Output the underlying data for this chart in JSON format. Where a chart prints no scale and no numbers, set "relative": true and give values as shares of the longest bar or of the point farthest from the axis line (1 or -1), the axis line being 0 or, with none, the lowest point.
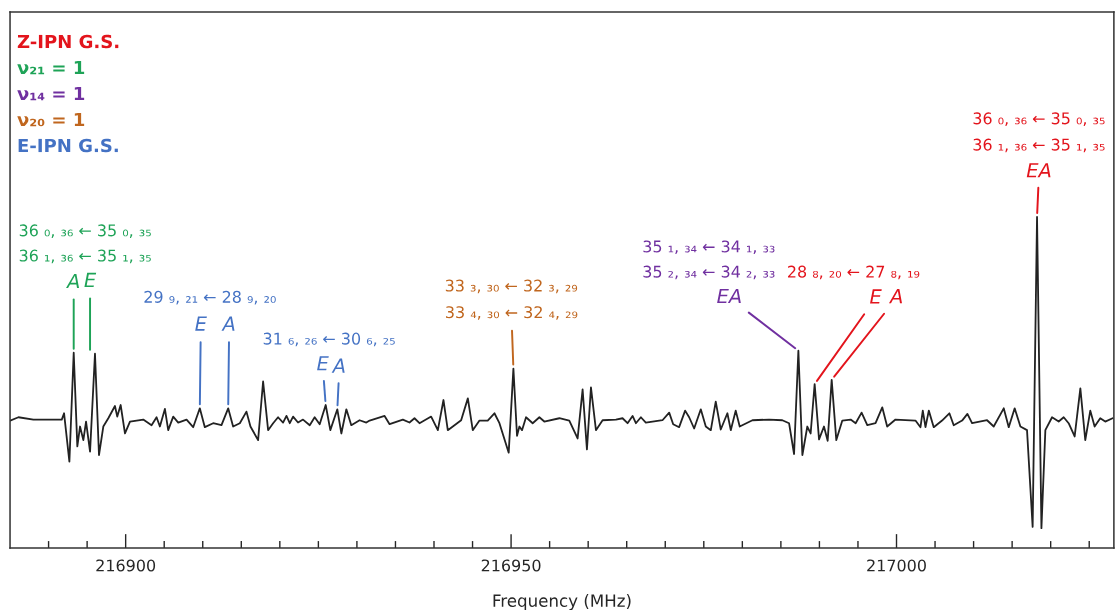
{
  "chart_data": {
    "type": "line",
    "relative": true,
    "xlabel": "Frequency (MHz)",
    "xlim": [
      216885,
      217028.2
    ],
    "xticks": [
      {
        "value": 216890,
        "label": null
      },
      {
        "value": 216895,
        "label": null
      },
      216900,
      {
        "value": 216905,
        "label": null
      },
      {
        "value": 216910,
        "label": null
      },
      {
        "value": 216915,
        "label": null
      },
      {
        "value": 216920,
        "label": null
      },
      {
        "value": 216925,
        "label": null
      },
      {
        "value": 216930,
        "label": null
      },
      {
        "value": 216935,
        "label": null
      },
      {
        "value": 216940,
        "label": null
      },
      {
        "value": 216945,
        "label": null
      },
      216950,
      {
        "value": 216955,
        "label": null
      },
      {
        "value": 216960,
        "label": null
      },
      {
        "value": 216965,
        "label": null
      },
      {
        "value": 216970,
        "label": null
      },
      {
        "value": 216975,
        "label": null
      },
      {
        "value": 216980,
        "label": null
      },
      {
        "value": 216985,
        "label": null
      },
      {
        "value": 216990,
        "label": null
      },
      {
        "value": 216995,
        "label": null
      },
      217000,
      {
        "value": 217005,
        "label": null
      },
      {
        "value": 217010,
        "label": null
      },
      {
        "value": 217015,
        "label": null
      },
      {
        "value": 217020,
        "label": null
      },
      {
        "value": 217025,
        "label": null
      }
    ],
    "tick_labels": "x",
    "marker": "none",
    "line_style": "solid",
    "x": [
      216885.01,
      216886.09,
      216888.03,
      216891.71,
      216892.01,
      216892.7,
      216893.26,
      216893.73,
      216894.08,
      216894.51,
      216894.86,
      216895.38,
      216896.02,
      216896.54,
      216897.1,
      216897.75,
      216898.61,
      216898.91,
      216899.35,
      216899.91,
      216900.56,
      216902.28,
      216903.36,
      216904.01,
      216904.44,
      216905.09,
      216905.52,
      216906.17,
      216906.82,
      216907.9,
      216908.76,
      216909.62,
      216910.27,
      216911.35,
      216912.43,
      216913.3,
      216913.94,
      216914.81,
      216915.67,
      216916.19,
      216917.18,
      216917.83,
      216918.48,
      216919.13,
      216919.77,
      216920.42,
      216920.86,
      216921.29,
      216921.72,
      216922.36,
      216923.01,
      216923.88,
      216924.52,
      216925.17,
      216925.95,
      216926.55,
      216927.46,
      216927.98,
      216928.63,
      216929.27,
      216930.35,
      216931.22,
      216931.65,
      216933.59,
      216934.24,
      216935.96,
      216936.82,
      216937.47,
      216938.12,
      216939.63,
      216940.5,
      216941.23,
      216941.79,
      216942.66,
      216943.52,
      216944.39,
      216945.03,
      216945.9,
      216946.97,
      216947.84,
      216948.49,
      216949.69,
      216950.3,
      216950.77,
      216951.08,
      216951.42,
      216951.94,
      216952.8,
      216953.67,
      216954.31,
      216956.26,
      216957.55,
      216958.63,
      216959.28,
      216959.84,
      216960.36,
      216961.01,
      216961.87,
      216963.6,
      216964.46,
      216965.11,
      216965.76,
      216966.19,
      216966.84,
      216967.48,
      216969.64,
      216970.51,
      216971.03,
      216971.8,
      216972.58,
      216973.1,
      216973.75,
      216974.61,
      216975.26,
      216975.91,
      216976.55,
      216977.2,
      216978.06,
      216978.5,
      216979.14,
      216979.66,
      216981.31,
      216983.47,
      216985.19,
      216986.06,
      216986.71,
      216987.27,
      216987.79,
      216988.43,
      216988.86,
      216989.38,
      216989.95,
      216990.59,
      216991.07,
      216991.59,
      216992.19,
      216992.97,
      216994.05,
      216994.7,
      216995.47,
      216996.21,
      216997.28,
      216998.15,
      216998.79,
      216999.87,
      217002.46,
      217003.11,
      217003.41,
      217003.76,
      217004.19,
      217004.83,
      217005.91,
      217006.86,
      217007.42,
      217008.51,
      217009.2,
      217009.8,
      217011.75,
      217012.61,
      217013.91,
      217014.56,
      217015.33,
      217016.07,
      217016.93,
      217017.66,
      217018.23,
      217018.8,
      217019.31,
      217020.18,
      217021.04,
      217021.69,
      217022.33,
      217023.11,
      217023.85,
      217024.49,
      217025.14,
      217025.7,
      217026.43,
      217027.08,
      217028.03
    ],
    "series": [
      {
        "color": "#222222",
        "values": [
          0.385,
          0.395,
          0.388,
          0.388,
          0.407,
          0.261,
          0.59,
          0.307,
          0.367,
          0.326,
          0.382,
          0.291,
          0.587,
          0.281,
          0.367,
          0.392,
          0.429,
          0.397,
          0.432,
          0.346,
          0.382,
          0.388,
          0.371,
          0.395,
          0.367,
          0.42,
          0.356,
          0.397,
          0.379,
          0.388,
          0.365,
          0.422,
          0.365,
          0.377,
          0.371,
          0.422,
          0.367,
          0.377,
          0.412,
          0.367,
          0.326,
          0.503,
          0.356,
          0.377,
          0.395,
          0.379,
          0.399,
          0.377,
          0.397,
          0.379,
          0.388,
          0.371,
          0.395,
          0.374,
          0.432,
          0.356,
          0.419,
          0.346,
          0.419,
          0.371,
          0.386,
          0.379,
          0.385,
          0.399,
          0.374,
          0.388,
          0.379,
          0.392,
          0.377,
          0.397,
          0.356,
          0.447,
          0.356,
          0.371,
          0.386,
          0.452,
          0.356,
          0.385,
          0.385,
          0.407,
          0.377,
          0.288,
          0.542,
          0.339,
          0.367,
          0.356,
          0.395,
          0.377,
          0.395,
          0.382,
          0.392,
          0.385,
          0.331,
          0.479,
          0.298,
          0.485,
          0.356,
          0.386,
          0.388,
          0.392,
          0.377,
          0.399,
          0.377,
          0.395,
          0.379,
          0.386,
          0.409,
          0.374,
          0.365,
          0.415,
          0.395,
          0.361,
          0.419,
          0.367,
          0.356,
          0.442,
          0.358,
          0.407,
          0.356,
          0.415,
          0.367,
          0.386,
          0.388,
          0.386,
          0.377,
          0.284,
          0.596,
          0.281,
          0.367,
          0.346,
          0.495,
          0.328,
          0.367,
          0.324,
          0.508,
          0.326,
          0.385,
          0.388,
          0.377,
          0.409,
          0.371,
          0.377,
          0.425,
          0.367,
          0.388,
          0.385,
          0.365,
          0.415,
          0.365,
          0.415,
          0.365,
          0.385,
          0.407,
          0.371,
          0.385,
          0.405,
          0.377,
          0.386,
          0.367,
          0.422,
          0.365,
          0.422,
          0.367,
          0.356,
          0.064,
          1.0,
          0.06,
          0.356,
          0.395,
          0.382,
          0.395,
          0.377,
          0.337,
          0.482,
          0.326,
          0.415,
          0.367,
          0.392,
          0.382,
          0.392
        ]
      }
    ],
    "annotations": [
      "Z-IPN G.S.",
      "ν₂₁ = 1",
      "ν₁₄ = 1",
      "ν₂₀ = 1",
      "E-IPN G.S.",
      "36 ₀, ₃₆ ← 35 ₀, ₃₅",
      "36 ₁, ₃₆ ← 35 ₁, ₃₅",
      {
        "text": "A",
        "x": 216893.26,
        "y": 0.59
      },
      {
        "text": "E",
        "x": 216895.38,
        "y": 0.587
      },
      "29 ₉, ₂₁ ← 28 ₉, ₂₀",
      {
        "text": "E",
        "x": 216909.62,
        "y": 0.422
      },
      {
        "text": "A",
        "x": 216913.3,
        "y": 0.422
      },
      "31 ₆, ₂₆ ← 30 ₆, ₂₅",
      {
        "text": "E",
        "x": 216925.95,
        "y": 0.432
      },
      {
        "text": "A",
        "x": 216927.46,
        "y": 0.419
      },
      "33 ₃, ₃₀ ← 32 ₃, ₂₉",
      {
        "text": "33 ₄, ₃₀ ← 32 ₄, ₂₉",
        "x": 216950.3,
        "y": 0.542
      },
      "35 ₁, ₃₄ ← 34 ₁, ₃₃",
      "35 ₂, ₃₄ ← 34 ₂, ₃₃",
      {
        "text": "EA",
        "x": 216987.27,
        "y": 0.596
      },
      "28 ₈, ₂₀ ← 27 ₈, ₁₉",
      {
        "text": "E",
        "x": 216989.38,
        "y": 0.495
      },
      {
        "text": "A",
        "x": 216991.59,
        "y": 0.508
      },
      "36 ₀, ₃₆ ← 35 ₀, ₃₅",
      "36 ₁, ₃₆ ← 35 ₁, ₃₅",
      {
        "text": "EA",
        "x": 217018.23,
        "y": 1.0
      }
    ]
  }
}
